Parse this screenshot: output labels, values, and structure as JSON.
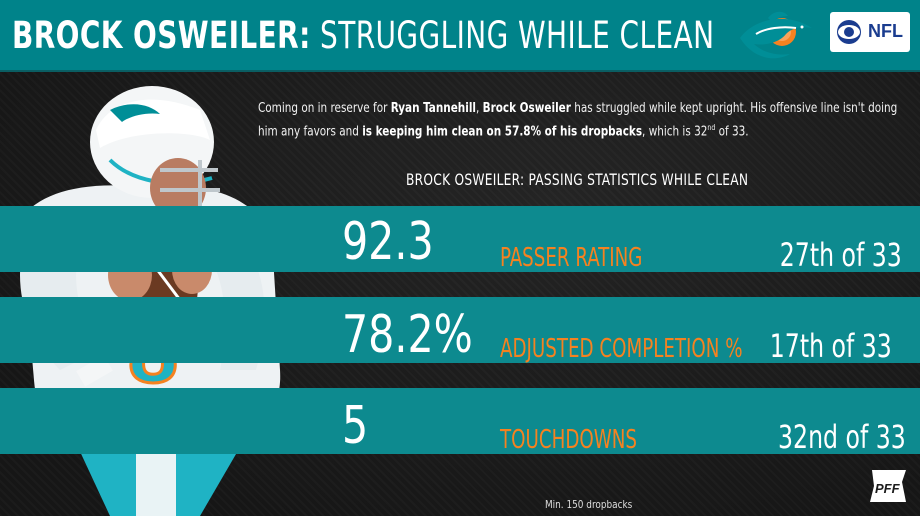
{
  "header": {
    "title_bold": "BROCK OSWEILER:",
    "title_light": "STRUGGLING WHILE CLEAN",
    "team_logo": "miami-dolphins-logo",
    "network_badge": "CBS NFL",
    "network_badge_text": "NFL"
  },
  "intro": {
    "part1": "Coming on in reserve for ",
    "name1": "Ryan Tannehill",
    "part2": ", ",
    "name2": "Brock Osweiler",
    "part3": " has struggled while kept upright. His offensive line isn't doing him any favors and ",
    "bold_clause": "is keeping him clean on 57.8% of his dropbacks",
    "part4": ", which is 32",
    "superscript": "nd",
    "part5": " of 33."
  },
  "subtitle": "BROCK OSWEILER: PASSING STATISTICS WHILE CLEAN",
  "stats": [
    {
      "value": "92.3",
      "label": "PASSER RATING",
      "rank": "27th of 33"
    },
    {
      "value": "78.2%",
      "label": "ADJUSTED COMPLETION %",
      "rank": "17th of 33"
    },
    {
      "value": "5",
      "label": "TOUCHDOWNS",
      "rank": "32nd of 33"
    }
  ],
  "footnote": "Min. 150 dropbacks",
  "colors": {
    "header_teal": "#00838a",
    "band_teal": "#0d8a8f",
    "label_orange": "#f58220",
    "background": "#1c1c1c"
  },
  "icons": {
    "player": "quarterback-photo",
    "pff": "pff-logo"
  }
}
